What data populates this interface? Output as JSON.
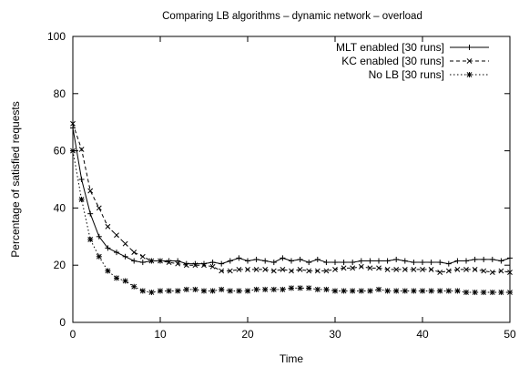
{
  "chart_data": {
    "type": "line",
    "title": "Comparing LB algorithms – dynamic network – overload",
    "xlabel": "Time",
    "ylabel": "Percentage of satisfied requests",
    "xlim": [
      0,
      50
    ],
    "ylim": [
      0,
      100
    ],
    "x_ticks": [
      0,
      10,
      20,
      30,
      40,
      50
    ],
    "y_ticks": [
      0,
      20,
      40,
      60,
      80,
      100
    ],
    "grid": false,
    "legend_position": "top-right",
    "x": [
      0,
      1,
      2,
      3,
      4,
      5,
      6,
      7,
      8,
      9,
      10,
      11,
      12,
      13,
      14,
      15,
      16,
      17,
      18,
      19,
      20,
      21,
      22,
      23,
      24,
      25,
      26,
      27,
      28,
      29,
      30,
      31,
      32,
      33,
      34,
      35,
      36,
      37,
      38,
      39,
      40,
      41,
      42,
      43,
      44,
      45,
      46,
      47,
      48,
      49,
      50
    ],
    "series": [
      {
        "name": "MLT enabled [30 runs]",
        "line_style": "solid",
        "marker": "plus",
        "values": [
          68,
          50,
          38,
          30,
          26,
          24.5,
          23,
          21.5,
          21,
          21.5,
          21.5,
          21.5,
          21.5,
          20.5,
          20.5,
          20.5,
          21,
          20.5,
          21.5,
          22.5,
          21.5,
          22,
          21.5,
          21,
          22.5,
          21.5,
          22,
          21,
          22,
          21,
          21,
          21,
          21,
          21.5,
          21.5,
          21.5,
          21.5,
          22,
          21.5,
          21,
          21,
          21,
          21,
          20.5,
          21.5,
          21.5,
          22,
          22,
          22,
          21.5,
          22.5
        ]
      },
      {
        "name": "KC enabled [30 runs]",
        "line_style": "dashed",
        "marker": "cross",
        "values": [
          69.5,
          60.5,
          46,
          40,
          33.5,
          30.5,
          27.5,
          24.5,
          23,
          21.5,
          21.5,
          21,
          20.5,
          20,
          20,
          20,
          19.5,
          18,
          18,
          18.5,
          18.5,
          18.5,
          18.5,
          18,
          18.5,
          18,
          18.5,
          18,
          18,
          18,
          18.5,
          19,
          19,
          19.5,
          19,
          19,
          18.5,
          18.5,
          18.5,
          18.5,
          18.5,
          18.5,
          17.5,
          18,
          18.5,
          18.5,
          18.5,
          18,
          17.5,
          18,
          17.5
        ]
      },
      {
        "name": "No LB [30 runs]",
        "line_style": "dotted",
        "marker": "star",
        "values": [
          60,
          43,
          29,
          23,
          18,
          15.5,
          14.5,
          12.5,
          11,
          10.5,
          11,
          11,
          11,
          11.5,
          11.5,
          11,
          11,
          11.5,
          11,
          11,
          11,
          11.5,
          11.5,
          11.5,
          11.5,
          12,
          12,
          12,
          11.5,
          11.5,
          11,
          11,
          11,
          11,
          11,
          11.5,
          11,
          11,
          11,
          11,
          11,
          11,
          11,
          11,
          11,
          10.5,
          10.5,
          10.5,
          10.5,
          10.5,
          10.5
        ]
      }
    ]
  }
}
